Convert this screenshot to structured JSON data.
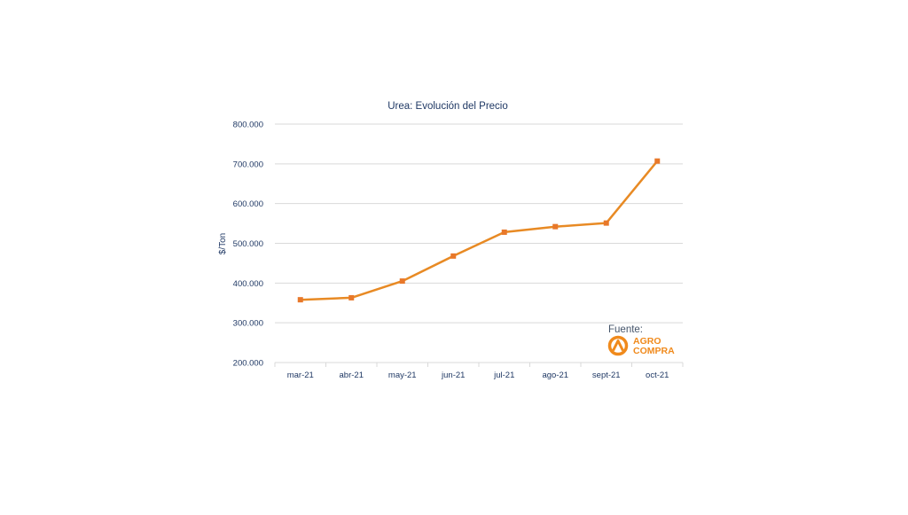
{
  "chart_data": {
    "type": "line",
    "title": "Urea: Evolución del Precio",
    "xlabel": "",
    "ylabel": "$/Ton",
    "categories": [
      "mar-21",
      "abr-21",
      "may-21",
      "jun-21",
      "jul-21",
      "ago-21",
      "sept-21",
      "oct-21"
    ],
    "series": [
      {
        "values": [
          358000,
          363000,
          405000,
          468000,
          528000,
          542000,
          551000,
          707000
        ]
      }
    ],
    "ylim": [
      200000,
      800000
    ],
    "yticks": [
      200000,
      300000,
      400000,
      500000,
      600000,
      700000,
      800000
    ],
    "ytick_labels": [
      "200.000",
      "300.000",
      "400.000",
      "500.000",
      "600.000",
      "700.000",
      "800.000"
    ],
    "grid": "horizontal",
    "legend": "none",
    "colors": {
      "line": "#e88a24",
      "marker": "#e8782a",
      "grid": "#d9d9d9",
      "text": "#1f3864"
    }
  },
  "source": {
    "label": "Fuente:",
    "logo_line1": "AGRO",
    "logo_line2": "COMPRA",
    "logo_icon": "agrocompra-logo-icon",
    "colors": {
      "logo": "#f08a1c",
      "label": "#44546a"
    }
  }
}
